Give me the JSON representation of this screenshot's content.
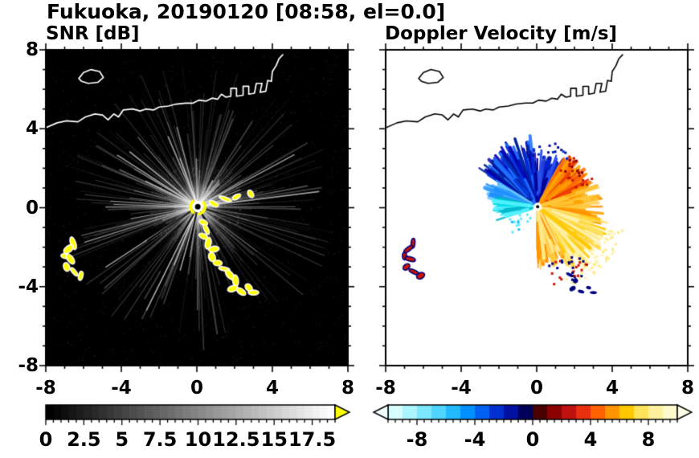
{
  "header": {
    "title": "Fukuoka, 20190120 [08:58, el=0.0]"
  },
  "chart_data": [
    {
      "type": "heatmap",
      "name": "snr",
      "title": "SNR [dB]",
      "xlim": [
        -8,
        8
      ],
      "ylim": [
        -8,
        8
      ],
      "xticks": [
        -8,
        -4,
        0,
        4,
        8
      ],
      "yticks": [
        -8,
        -4,
        0,
        4,
        8
      ],
      "minor_tick_step": 1,
      "background": "#000000",
      "center": [
        0.05,
        0.05
      ],
      "colorbar": {
        "min": 0,
        "max": 19,
        "ticks": [
          0,
          2.5,
          5,
          7.5,
          10,
          12.5,
          15,
          17.5
        ],
        "tick_labels": [
          "0",
          "2.5",
          "5",
          "7.5",
          "10",
          "12.5",
          "15",
          "17.5"
        ],
        "minor_step": 0.5,
        "gradient": [
          "#000000",
          "#ffffff"
        ],
        "over_arrow_color": "#ffff00"
      }
    },
    {
      "type": "heatmap",
      "name": "doppler",
      "title": "Doppler Velocity [m/s]",
      "xlim": [
        -8,
        8
      ],
      "ylim": [
        -8,
        8
      ],
      "xticks": [
        -8,
        -4,
        0,
        4,
        8
      ],
      "yticks": [
        -8,
        -4,
        0,
        4,
        8
      ],
      "minor_tick_step": 1,
      "background": "#ffffff",
      "center": [
        0.05,
        0.05
      ],
      "colorbar": {
        "min": -10,
        "max": 10,
        "ticks": [
          -8,
          -4,
          0,
          4,
          8
        ],
        "tick_labels": [
          "-8",
          "-4",
          "0",
          "4",
          "8"
        ],
        "minor_step": 0.5,
        "segment_colors": [
          "#d8ffff",
          "#aaf5ff",
          "#7ce8ff",
          "#4fd5ff",
          "#22baff",
          "#0090ff",
          "#0060f0",
          "#0030d0",
          "#0010a0",
          "#000058",
          "#4a0000",
          "#8b0000",
          "#c01010",
          "#e83010",
          "#ff6000",
          "#ff9500",
          "#ffc800",
          "#ffe35a",
          "#fff29e",
          "#fffacd"
        ],
        "under_arrow_color": "#f2ffff",
        "over_arrow_color": "#ffffe6"
      }
    }
  ],
  "map": {
    "coastline": [
      [
        -8,
        4.05
      ],
      [
        -7.4,
        4.3
      ],
      [
        -6.9,
        4.4
      ],
      [
        -6.3,
        4.35
      ],
      [
        -5.9,
        4.6
      ],
      [
        -5.4,
        4.75
      ],
      [
        -5.0,
        4.7
      ],
      [
        -4.7,
        4.45
      ],
      [
        -4.4,
        4.75
      ],
      [
        -4.15,
        4.6
      ],
      [
        -3.9,
        4.95
      ],
      [
        -3.4,
        5.0
      ],
      [
        -3.0,
        4.9
      ],
      [
        -2.7,
        5.0
      ],
      [
        -2.3,
        4.95
      ],
      [
        -2.0,
        5.1
      ],
      [
        -1.5,
        5.15
      ],
      [
        -1.1,
        5.25
      ],
      [
        -0.6,
        5.3
      ],
      [
        -0.2,
        5.3
      ],
      [
        0.1,
        5.45
      ],
      [
        0.5,
        5.4
      ],
      [
        0.8,
        5.55
      ],
      [
        1.1,
        5.5
      ],
      [
        1.3,
        5.75
      ],
      [
        1.55,
        5.6
      ],
      [
        1.8,
        5.65
      ],
      [
        1.8,
        6.05
      ],
      [
        2.1,
        6.05
      ],
      [
        2.1,
        5.65
      ],
      [
        2.45,
        5.7
      ],
      [
        2.45,
        6.15
      ],
      [
        2.75,
        6.15
      ],
      [
        2.75,
        5.75
      ],
      [
        3.05,
        5.8
      ],
      [
        3.15,
        6.3
      ],
      [
        3.45,
        6.3
      ],
      [
        3.35,
        5.85
      ],
      [
        3.65,
        5.9
      ],
      [
        3.75,
        6.45
      ],
      [
        3.95,
        6.4
      ],
      [
        4.0,
        6.9
      ],
      [
        4.2,
        7.2
      ],
      [
        4.35,
        7.55
      ],
      [
        4.55,
        7.75
      ]
    ],
    "island": [
      [
        -6.25,
        6.55
      ],
      [
        -6.0,
        6.85
      ],
      [
        -5.6,
        7.0
      ],
      [
        -5.15,
        6.9
      ],
      [
        -4.95,
        6.6
      ],
      [
        -5.25,
        6.35
      ],
      [
        -5.75,
        6.3
      ],
      [
        -6.1,
        6.4
      ]
    ]
  },
  "clutter": {
    "sw_chain": [
      [
        -6.55,
        -1.8
      ],
      [
        -6.8,
        -2.1
      ],
      [
        -7.0,
        -2.45
      ],
      [
        -6.7,
        -2.6
      ],
      [
        -6.9,
        -3.0
      ],
      [
        -6.5,
        -3.25
      ],
      [
        -6.15,
        -3.45
      ]
    ],
    "south_chain": [
      [
        0.35,
        -0.75
      ],
      [
        0.5,
        -1.1
      ],
      [
        0.35,
        -1.45
      ],
      [
        0.6,
        -1.8
      ],
      [
        0.9,
        -2.1
      ],
      [
        0.8,
        -2.5
      ],
      [
        1.1,
        -2.8
      ],
      [
        1.45,
        -3.1
      ],
      [
        1.75,
        -3.4
      ],
      [
        2.05,
        -3.7
      ],
      [
        1.9,
        -4.1
      ],
      [
        2.35,
        -4.25
      ],
      [
        2.75,
        -4.05
      ],
      [
        3.0,
        -4.3
      ]
    ],
    "near_center": [
      [
        0.9,
        0.2
      ],
      [
        1.5,
        0.45
      ],
      [
        2.1,
        0.55
      ],
      [
        2.85,
        0.7
      ]
    ]
  },
  "doppler_sectors": [
    {
      "a0": 95,
      "a1": 150,
      "rmax": 3.8,
      "colors": [
        "#0033dd",
        "#0000b0",
        "#1e6fff",
        "#002299"
      ],
      "count": 120
    },
    {
      "a0": 60,
      "a1": 96,
      "rmax": 3.0,
      "colors": [
        "#000090",
        "#0022cc",
        "#2b50ee"
      ],
      "count": 70
    },
    {
      "a0": 147,
      "a1": 170,
      "rmax": 3.0,
      "colors": [
        "#2f9bff",
        "#69c8ff",
        "#1e90ff"
      ],
      "count": 40
    },
    {
      "a0": 167,
      "a1": 200,
      "rmax": 2.5,
      "colors": [
        "#00dce8",
        "#59f2ff",
        "#00b8cc"
      ],
      "count": 40
    },
    {
      "a0": 18,
      "a1": 62,
      "rmax": 3.2,
      "colors": [
        "#ff6a00",
        "#ff8c00",
        "#e83200",
        "#ffa200"
      ],
      "count": 95
    },
    {
      "a0": -15,
      "a1": 20,
      "rmax": 3.5,
      "colors": [
        "#ffa200",
        "#ffc83c",
        "#ff9300"
      ],
      "count": 85
    },
    {
      "a0": -65,
      "a1": -12,
      "rmax": 3.9,
      "colors": [
        "#ffd84a",
        "#ffe97e",
        "#ffc800",
        "#fff3b0"
      ],
      "count": 140
    },
    {
      "a0": -90,
      "a1": -62,
      "rmax": 3.3,
      "colors": [
        "#ffc83c",
        "#ff9300",
        "#ffea8c"
      ],
      "count": 60
    }
  ],
  "doppler_specks": [
    {
      "a0": -70,
      "a1": -15,
      "r0": 3.4,
      "r1": 4.6,
      "colors": [
        "#fff3b0",
        "#ffe97e"
      ],
      "count": 70,
      "size": 3
    },
    {
      "a0": 25,
      "a1": 60,
      "r0": 2.1,
      "r1": 3.4,
      "colors": [
        "#c81400",
        "#8b0000"
      ],
      "count": 25,
      "size": 3
    },
    {
      "a0": -80,
      "a1": -48,
      "r0": 2.9,
      "r1": 4.3,
      "colors": [
        "#c81400",
        "#000080"
      ],
      "count": 32,
      "size": 3
    },
    {
      "a0": 195,
      "a1": 232,
      "r0": 0.7,
      "r1": 1.9,
      "colors": [
        "#59e8ff",
        "#22baff"
      ],
      "count": 14,
      "size": 3
    },
    {
      "a0": 60,
      "a1": 100,
      "r0": 2.6,
      "r1": 3.6,
      "colors": [
        "#0030d0",
        "#0010a0"
      ],
      "count": 20,
      "size": 3
    }
  ]
}
